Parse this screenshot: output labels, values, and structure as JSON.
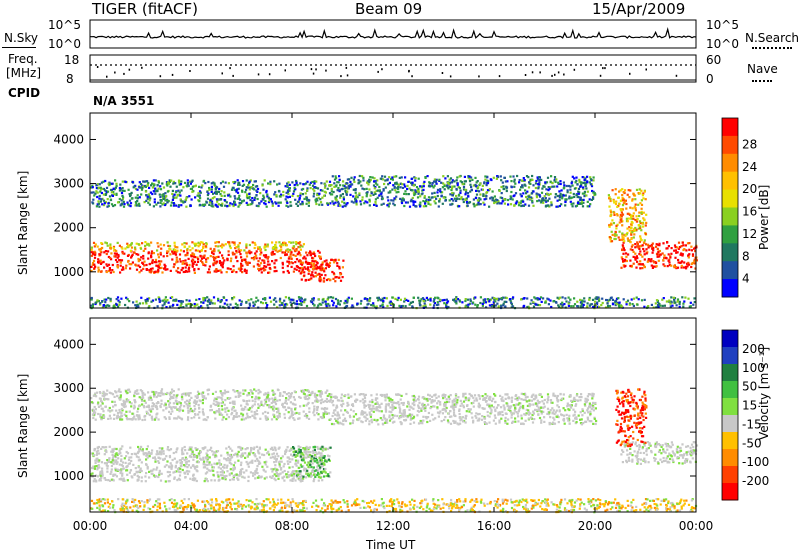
{
  "header": {
    "station": "TIGER (fitACF)",
    "beam": "Beam 09",
    "date": "15/Apr/2009"
  },
  "top_panel": {
    "left_label": "N.Sky",
    "right_label": "N.Search",
    "left_ticks": [
      "10^5",
      "10^0"
    ],
    "right_ticks": [
      "10^5",
      "10^0"
    ]
  },
  "freq_panel": {
    "left_label_1": "Freq.",
    "left_label_2": "[MHz]",
    "right_label": "Nave",
    "left_ticks": [
      "18",
      "8"
    ],
    "right_ticks": [
      "60",
      "0"
    ],
    "cpid_label": "CPID",
    "cpid_value": "N/A 3551"
  },
  "chart_data": [
    {
      "type": "heatmap",
      "title": "",
      "xlabel": "Time UT",
      "ylabel": "Slant Range [km]",
      "x_ticks": [
        "00:00",
        "04:00",
        "08:00",
        "12:00",
        "16:00",
        "20:00",
        "00:00"
      ],
      "y_ticks": [
        "1000",
        "2000",
        "3000",
        "4000"
      ],
      "ylim": [
        180,
        4600
      ],
      "xlim": [
        0,
        24
      ],
      "colorbar": {
        "label": "Power [dB]",
        "ticks": [
          "28",
          "24",
          "20",
          "16",
          "12",
          "8",
          "4"
        ],
        "colors": [
          "#ff0000",
          "#ff4a00",
          "#ff8c00",
          "#ffc000",
          "#e8e000",
          "#8ad020",
          "#30a040",
          "#207860",
          "#2050a0",
          "#0000ff"
        ]
      },
      "regions": [
        {
          "t0": 0,
          "t1": 9.2,
          "r0": 1000,
          "r1": 1500,
          "level": "high"
        },
        {
          "t0": 0,
          "t1": 8.5,
          "r0": 1500,
          "r1": 1700,
          "level": "mid"
        },
        {
          "t0": 0,
          "t1": 9.5,
          "r0": 2500,
          "r1": 3100,
          "level": "low"
        },
        {
          "t0": 8.3,
          "t1": 10.0,
          "r0": 800,
          "r1": 1300,
          "level": "high"
        },
        {
          "t0": 9.5,
          "t1": 20.0,
          "r0": 2500,
          "r1": 3200,
          "level": "low"
        },
        {
          "t0": 21.0,
          "t1": 24.0,
          "r0": 1100,
          "r1": 1700,
          "level": "high"
        },
        {
          "t0": 20.5,
          "t1": 22.0,
          "r0": 1700,
          "r1": 2900,
          "level": "mid"
        },
        {
          "t0": 0,
          "t1": 24.0,
          "r0": 200,
          "r1": 450,
          "level": "low"
        }
      ]
    },
    {
      "type": "heatmap",
      "title": "",
      "xlabel": "Time UT",
      "ylabel": "Slant Range [km]",
      "x_ticks": [
        "00:00",
        "04:00",
        "08:00",
        "12:00",
        "16:00",
        "20:00",
        "00:00"
      ],
      "y_ticks": [
        "1000",
        "2000",
        "3000",
        "4000"
      ],
      "ylim": [
        180,
        4600
      ],
      "xlim": [
        0,
        24
      ],
      "colorbar": {
        "label": "Velocity [m s⁻¹]",
        "ticks": [
          "200",
          "100",
          "50",
          "15",
          "-15",
          "-50",
          "-100",
          "-200"
        ],
        "colors": [
          "#0000c0",
          "#2040c0",
          "#208040",
          "#40c040",
          "#80e040",
          "#c8c8c8",
          "#ffc000",
          "#ff8c00",
          "#ff4000",
          "#ff0000"
        ]
      },
      "regions": [
        {
          "t0": 0,
          "t1": 9.2,
          "r0": 900,
          "r1": 1700,
          "level": "gray"
        },
        {
          "t0": 0,
          "t1": 9.5,
          "r0": 2300,
          "r1": 3000,
          "level": "gray"
        },
        {
          "t0": 9.5,
          "t1": 20.0,
          "r0": 2200,
          "r1": 2900,
          "level": "gray"
        },
        {
          "t0": 21.0,
          "t1": 24.0,
          "r0": 1300,
          "r1": 1800,
          "level": "gray"
        },
        {
          "t0": 20.8,
          "t1": 22.0,
          "r0": 1700,
          "r1": 3000,
          "level": "red"
        },
        {
          "t0": 0,
          "t1": 24.0,
          "r0": 200,
          "r1": 500,
          "level": "orange"
        },
        {
          "t0": 8.0,
          "t1": 9.5,
          "r0": 1000,
          "r1": 1700,
          "level": "green"
        }
      ]
    }
  ]
}
